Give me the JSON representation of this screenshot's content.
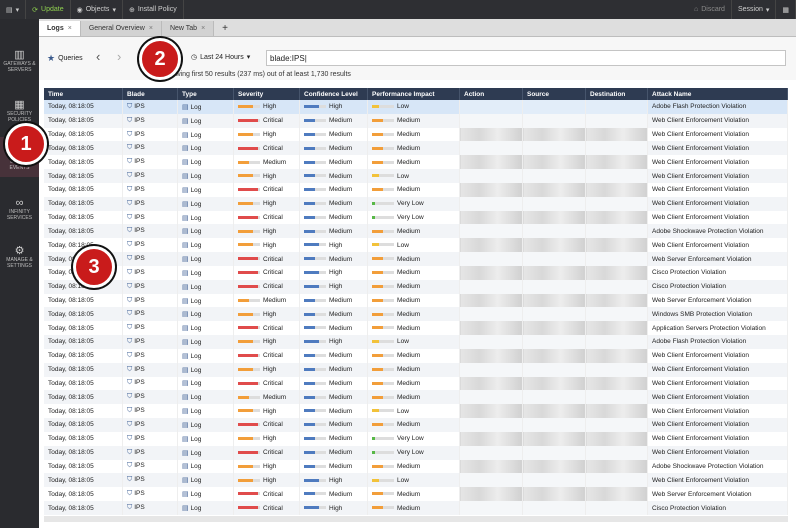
{
  "topbar": {
    "menu": "",
    "update": "Update",
    "objects": "Objects",
    "install": "Install Policy",
    "discard": "Discard",
    "session": "Session"
  },
  "nav": {
    "gateways": "GATEWAYS & SERVERS",
    "security": "SECURITY POLICIES",
    "logs": "LOGS & EVENTS",
    "infinity": "INFINITY SERVICES",
    "manage": "MANAGE & SETTINGS"
  },
  "tabs": [
    "Logs",
    "General Overview",
    "New Tab"
  ],
  "toolbar": {
    "queries": "Queries",
    "time": "Last 24 Hours",
    "search": "blade:IPS",
    "result_info": "Showing first 50 results (237 ms) out of at least 1,730 results"
  },
  "columns": [
    "Time",
    "Blade",
    "Type",
    "Severity",
    "Confidence Level",
    "Performance Impact",
    "Action",
    "Source",
    "Destination",
    "Attack Name"
  ],
  "rows": [
    {
      "time": "Today, 08:18:05",
      "blade": "IPS",
      "type": "Log",
      "sev": "High",
      "conf": "High",
      "perf": "Low",
      "attack": "Adobe Flash Protection Violation"
    },
    {
      "time": "Today, 08:18:05",
      "blade": "IPS",
      "type": "Log",
      "sev": "Critical",
      "conf": "Medium",
      "perf": "Medium",
      "attack": "Web Client Enforcement Violation"
    },
    {
      "time": "Today, 08:18:05",
      "blade": "IPS",
      "type": "Log",
      "sev": "High",
      "conf": "Medium",
      "perf": "Medium",
      "attack": "Web Client Enforcement Violation"
    },
    {
      "time": "Today, 08:18:05",
      "blade": "IPS",
      "type": "Log",
      "sev": "Critical",
      "conf": "Medium",
      "perf": "Medium",
      "attack": "Web Client Enforcement Violation"
    },
    {
      "time": "Today, 08:18:05",
      "blade": "IPS",
      "type": "Log",
      "sev": "Medium",
      "conf": "Medium",
      "perf": "Medium",
      "attack": "Web Client Enforcement Violation"
    },
    {
      "time": "Today, 08:18:05",
      "blade": "IPS",
      "type": "Log",
      "sev": "High",
      "conf": "Medium",
      "perf": "Low",
      "attack": "Web Client Enforcement Violation"
    },
    {
      "time": "Today, 08:18:05",
      "blade": "IPS",
      "type": "Log",
      "sev": "Critical",
      "conf": "Medium",
      "perf": "Medium",
      "attack": "Web Client Enforcement Violation"
    },
    {
      "time": "Today, 08:18:05",
      "blade": "IPS",
      "type": "Log",
      "sev": "High",
      "conf": "Medium",
      "perf": "Very Low",
      "attack": "Web Client Enforcement Violation"
    },
    {
      "time": "Today, 08:18:05",
      "blade": "IPS",
      "type": "Log",
      "sev": "Critical",
      "conf": "Medium",
      "perf": "Very Low",
      "attack": "Web Client Enforcement Violation"
    },
    {
      "time": "Today, 08:18:05",
      "blade": "IPS",
      "type": "Log",
      "sev": "High",
      "conf": "Medium",
      "perf": "Medium",
      "attack": "Adobe Shockwave Protection Violation"
    },
    {
      "time": "Today, 08:18:05",
      "blade": "IPS",
      "type": "Log",
      "sev": "High",
      "conf": "High",
      "perf": "Low",
      "attack": "Web Client Enforcement Violation"
    },
    {
      "time": "Today, 08:18:05",
      "blade": "IPS",
      "type": "Log",
      "sev": "Critical",
      "conf": "Medium",
      "perf": "Medium",
      "attack": "Web Server Enforcement Violation"
    },
    {
      "time": "Today, 08:18:05",
      "blade": "IPS",
      "type": "Log",
      "sev": "Critical",
      "conf": "High",
      "perf": "Medium",
      "attack": "Cisco Protection Violation"
    },
    {
      "time": "Today, 08:18:05",
      "blade": "IPS",
      "type": "Log",
      "sev": "Critical",
      "conf": "High",
      "perf": "Medium",
      "attack": "Cisco Protection Violation"
    },
    {
      "time": "Today, 08:18:05",
      "blade": "IPS",
      "type": "Log",
      "sev": "Medium",
      "conf": "Medium",
      "perf": "Medium",
      "attack": "Web Server Enforcement Violation"
    },
    {
      "time": "Today, 08:18:05",
      "blade": "IPS",
      "type": "Log",
      "sev": "High",
      "conf": "Medium",
      "perf": "Medium",
      "attack": "Windows SMB Protection Violation"
    },
    {
      "time": "Today, 08:18:05",
      "blade": "IPS",
      "type": "Log",
      "sev": "Critical",
      "conf": "Medium",
      "perf": "Medium",
      "attack": "Application Servers Protection Violation"
    },
    {
      "time": "Today, 08:18:05",
      "blade": "IPS",
      "type": "Log",
      "sev": "High",
      "conf": "High",
      "perf": "Low",
      "attack": "Adobe Flash Protection Violation"
    },
    {
      "time": "Today, 08:18:05",
      "blade": "IPS",
      "type": "Log",
      "sev": "Critical",
      "conf": "Medium",
      "perf": "Medium",
      "attack": "Web Client Enforcement Violation"
    },
    {
      "time": "Today, 08:18:05",
      "blade": "IPS",
      "type": "Log",
      "sev": "High",
      "conf": "Medium",
      "perf": "Medium",
      "attack": "Web Client Enforcement Violation"
    },
    {
      "time": "Today, 08:18:05",
      "blade": "IPS",
      "type": "Log",
      "sev": "Critical",
      "conf": "Medium",
      "perf": "Medium",
      "attack": "Web Client Enforcement Violation"
    },
    {
      "time": "Today, 08:18:05",
      "blade": "IPS",
      "type": "Log",
      "sev": "Medium",
      "conf": "Medium",
      "perf": "Medium",
      "attack": "Web Client Enforcement Violation"
    },
    {
      "time": "Today, 08:18:05",
      "blade": "IPS",
      "type": "Log",
      "sev": "High",
      "conf": "Medium",
      "perf": "Low",
      "attack": "Web Client Enforcement Violation"
    },
    {
      "time": "Today, 08:18:05",
      "blade": "IPS",
      "type": "Log",
      "sev": "Critical",
      "conf": "Medium",
      "perf": "Medium",
      "attack": "Web Client Enforcement Violation"
    },
    {
      "time": "Today, 08:18:05",
      "blade": "IPS",
      "type": "Log",
      "sev": "High",
      "conf": "Medium",
      "perf": "Very Low",
      "attack": "Web Client Enforcement Violation"
    },
    {
      "time": "Today, 08:18:05",
      "blade": "IPS",
      "type": "Log",
      "sev": "Critical",
      "conf": "Medium",
      "perf": "Very Low",
      "attack": "Web Client Enforcement Violation"
    },
    {
      "time": "Today, 08:18:05",
      "blade": "IPS",
      "type": "Log",
      "sev": "High",
      "conf": "Medium",
      "perf": "Medium",
      "attack": "Adobe Shockwave Protection Violation"
    },
    {
      "time": "Today, 08:18:05",
      "blade": "IPS",
      "type": "Log",
      "sev": "High",
      "conf": "High",
      "perf": "Low",
      "attack": "Web Client Enforcement Violation"
    },
    {
      "time": "Today, 08:18:05",
      "blade": "IPS",
      "type": "Log",
      "sev": "Critical",
      "conf": "Medium",
      "perf": "Medium",
      "attack": "Web Server Enforcement Violation"
    },
    {
      "time": "Today, 08:18:05",
      "blade": "IPS",
      "type": "Log",
      "sev": "Critical",
      "conf": "High",
      "perf": "Medium",
      "attack": "Cisco Protection Violation"
    }
  ],
  "level_colors": {
    "Critical": "#e04b4b",
    "High": "#f29e3a",
    "Medium": "#f29e3a",
    "Low": "#f2c23a",
    "Very Low": "#57b847"
  },
  "level_fill": {
    "Critical": 0.9,
    "High": 0.7,
    "Medium": 0.5,
    "Low": 0.3,
    "Very Low": 0.15
  },
  "badges": [
    "1",
    "2",
    "3"
  ]
}
